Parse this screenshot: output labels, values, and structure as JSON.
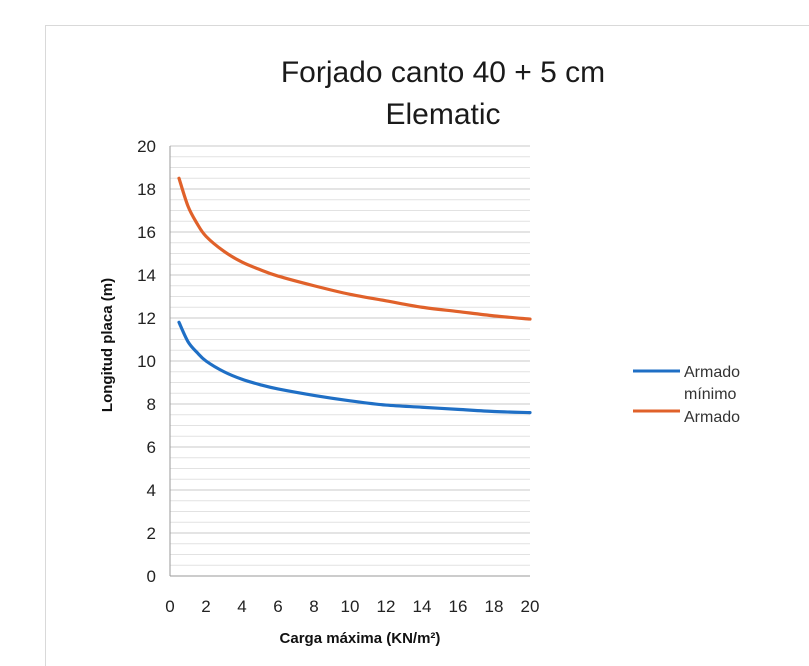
{
  "chart_data": {
    "type": "line",
    "title_line1": "Forjado canto 40 + 5 cm",
    "title_line2": "Elematic",
    "xlabel": "Carga máxima (KN/m²)",
    "ylabel": "Longitud placa (m)",
    "xlim": [
      0,
      20
    ],
    "ylim": [
      0,
      20
    ],
    "x_ticks": [
      0,
      2,
      4,
      6,
      8,
      10,
      12,
      14,
      16,
      18,
      20
    ],
    "y_ticks": [
      0,
      2,
      4,
      6,
      8,
      10,
      12,
      14,
      16,
      18,
      20
    ],
    "grid": true,
    "legend_position": "right",
    "series": [
      {
        "name": "Armado mínimo",
        "legend_line1": "Armado",
        "legend_line2": "mínimo",
        "color": "#1f6fc5",
        "x": [
          0.5,
          1,
          1.5,
          2,
          3,
          4,
          5,
          6,
          8,
          10,
          12,
          14,
          16,
          18,
          20
        ],
        "y": [
          11.8,
          10.9,
          10.4,
          10.0,
          9.5,
          9.15,
          8.9,
          8.7,
          8.4,
          8.15,
          7.95,
          7.85,
          7.75,
          7.65,
          7.6
        ]
      },
      {
        "name": "Armado",
        "legend_line1": "Armado",
        "legend_line2": "",
        "color": "#e0612a",
        "x": [
          0.5,
          1,
          1.5,
          2,
          3,
          4,
          5,
          6,
          8,
          10,
          12,
          14,
          16,
          18,
          20
        ],
        "y": [
          18.5,
          17.2,
          16.4,
          15.8,
          15.1,
          14.6,
          14.25,
          13.95,
          13.5,
          13.1,
          12.8,
          12.5,
          12.3,
          12.1,
          11.95
        ]
      }
    ]
  }
}
